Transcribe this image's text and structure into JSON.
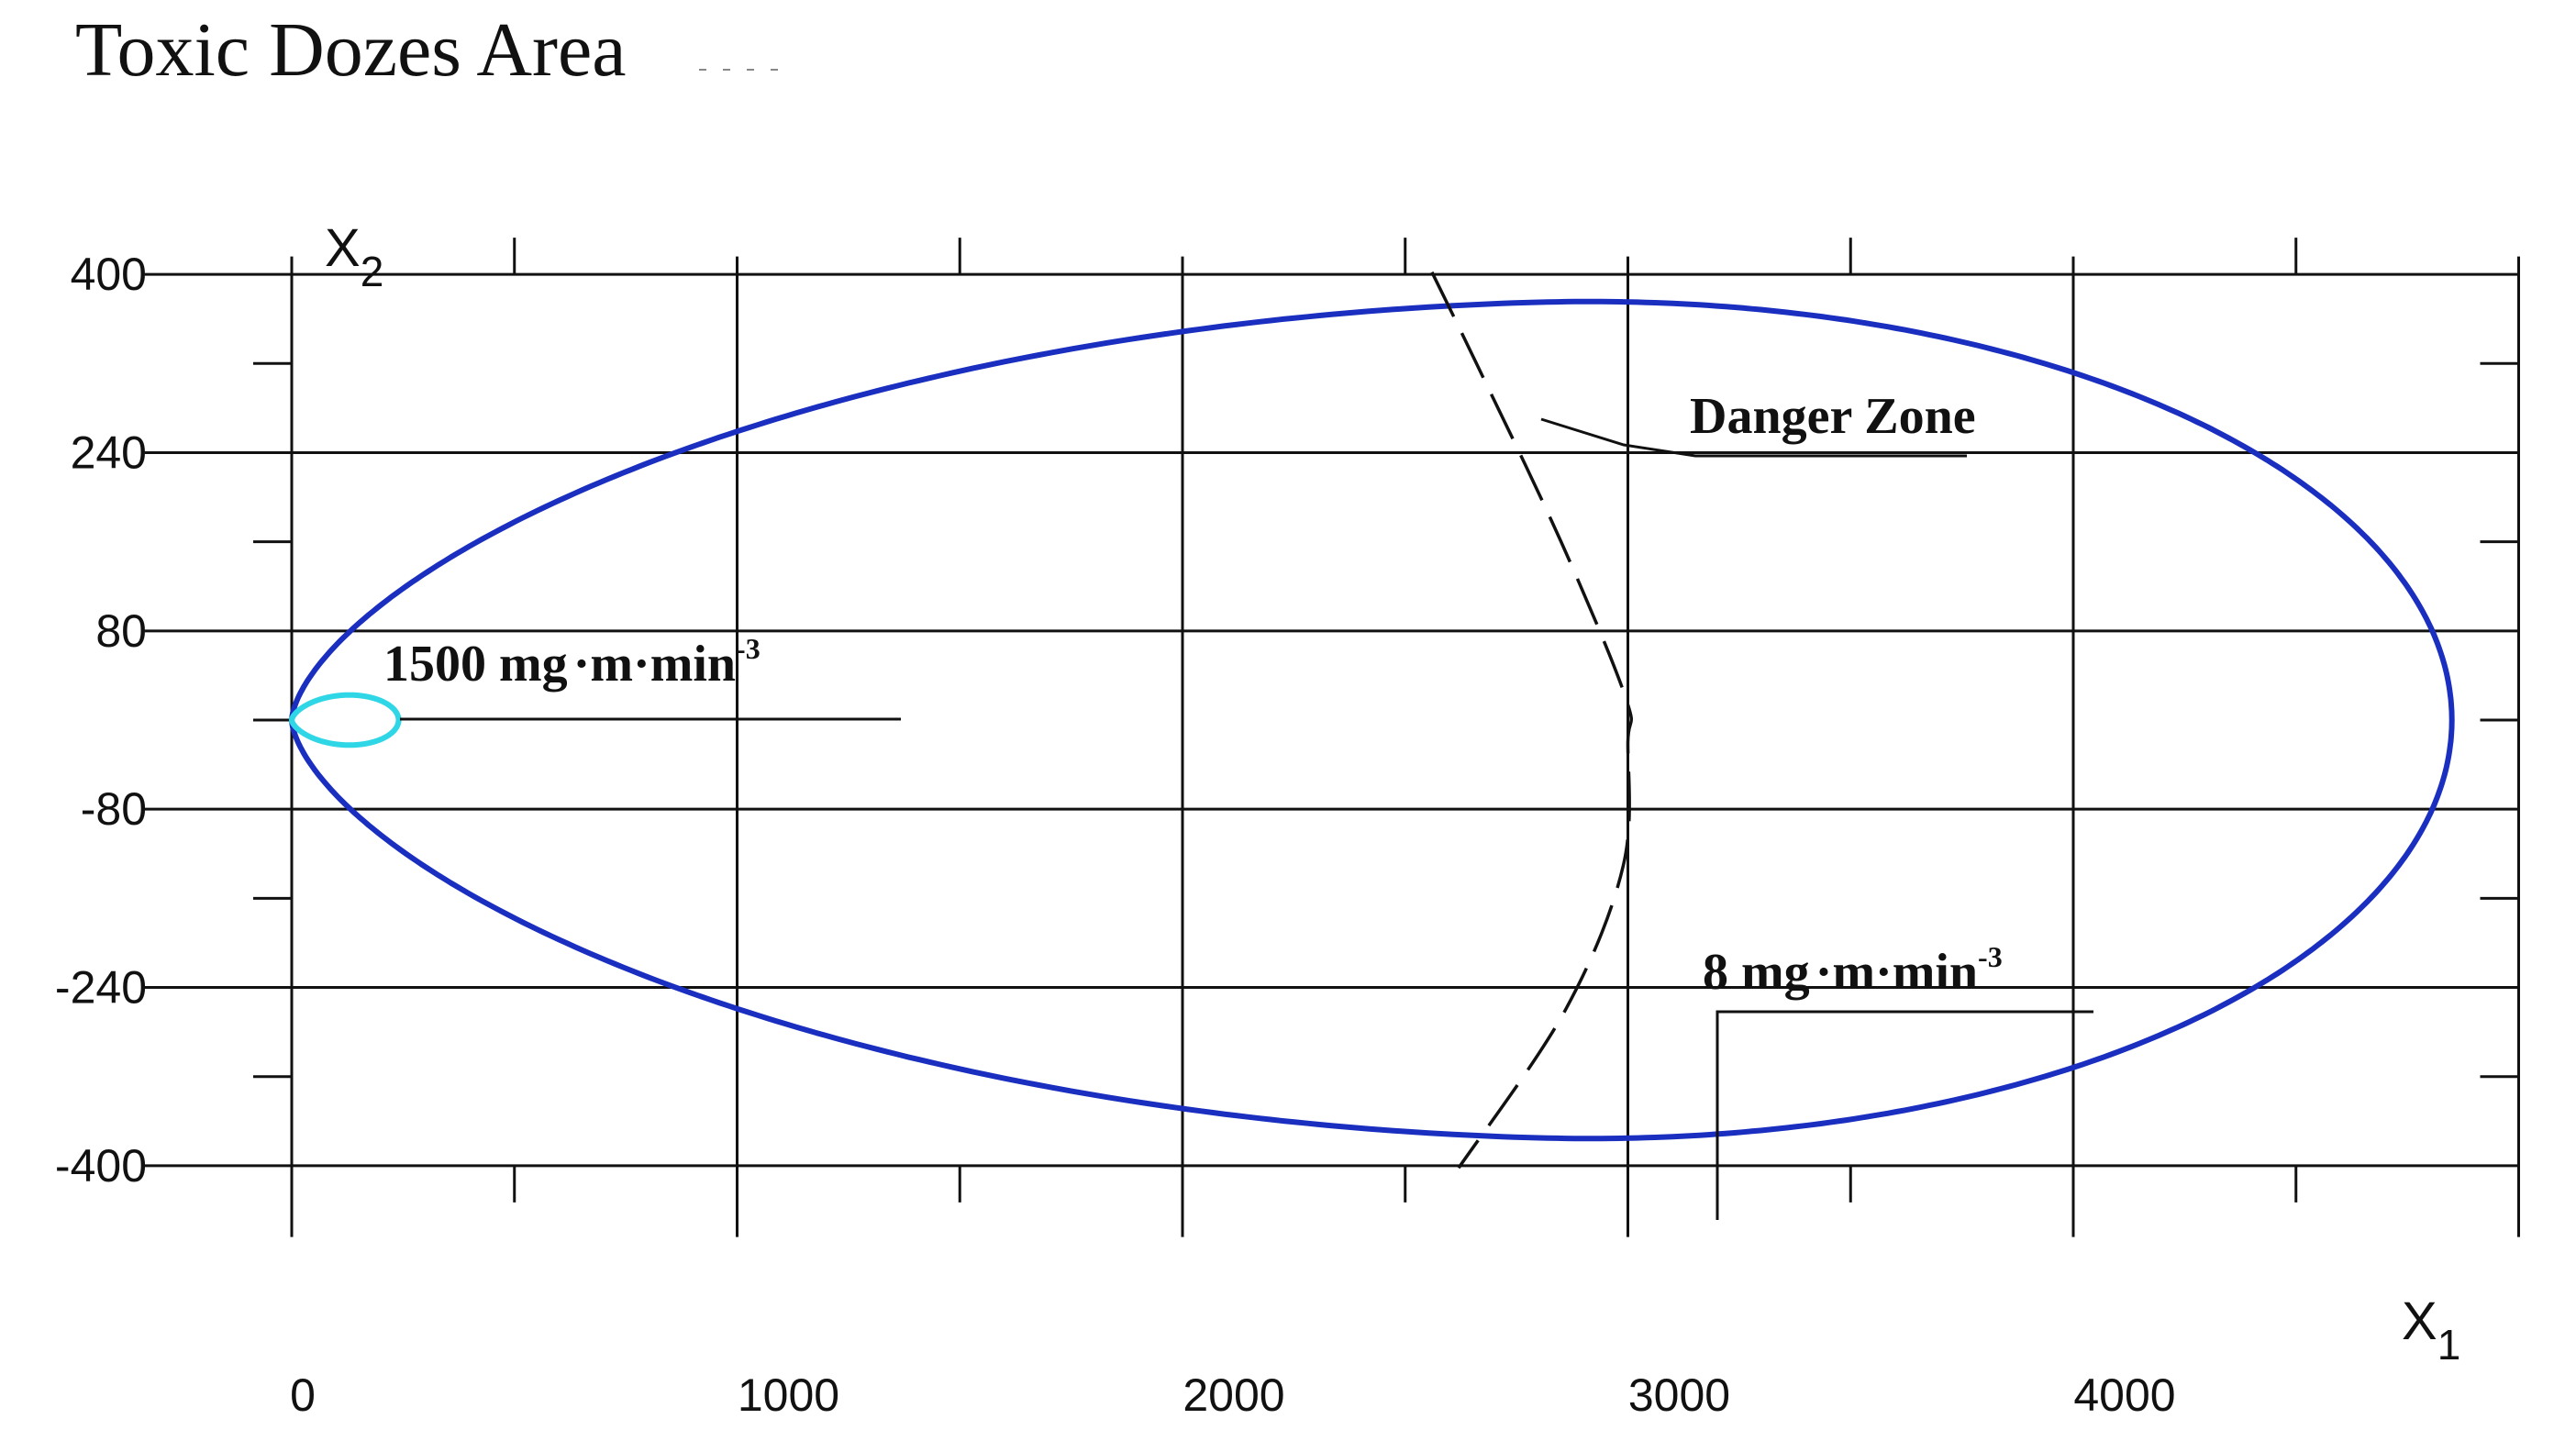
{
  "chart_data": {
    "type": "line",
    "title": "Toxic Dozes Area",
    "xlabel": "X",
    "xlabel_sub": "1",
    "ylabel": "X",
    "ylabel_sub": "2",
    "xlim": [
      0,
      5000
    ],
    "ylim": [
      -400,
      400
    ],
    "x_ticks": [
      0,
      1000,
      2000,
      3000,
      4000
    ],
    "y_ticks": [
      400,
      240,
      80,
      -80,
      -240,
      -400
    ],
    "x_tick_labels": [
      "0",
      "1000",
      "2000",
      "3000",
      "4000"
    ],
    "y_tick_labels": [
      "400",
      "240",
      "80",
      "-80",
      "-240",
      "-400"
    ],
    "grid": true,
    "colors": {
      "outer_contour": "#1a2fc0",
      "inner_contour": "#2fd6e6",
      "danger_boundary": "#111111",
      "grid": "#111111"
    },
    "series": [
      {
        "key": "outer",
        "style": "solid",
        "x_start": 0,
        "x_end": 4850,
        "x_peak": 2800,
        "y_max": 364
      },
      {
        "key": "inner",
        "style": "solid",
        "x_start": 0,
        "x_end": 240,
        "x_peak": 120,
        "y_max": 22
      },
      {
        "key": "danger",
        "style": "dashed",
        "x": [
          2560,
          2660,
          2850,
          2995,
          3000,
          2990,
          2860,
          2620
        ],
        "y": [
          402,
          320,
          160,
          20,
          -20,
          -130,
          -260,
          -402
        ]
      }
    ],
    "annotations": [
      {
        "key": "inner_label",
        "text": "1500 mg",
        "dot1": "·",
        "mid": "m",
        "dot2": "·",
        "unit": "min",
        "sup": "-3"
      },
      {
        "key": "outer_label",
        "text": "8 mg",
        "dot1": "·",
        "mid": "m",
        "dot2": "·",
        "unit": "min",
        "sup": "-3"
      },
      {
        "key": "danger_label",
        "text": "Danger Zone"
      }
    ]
  }
}
